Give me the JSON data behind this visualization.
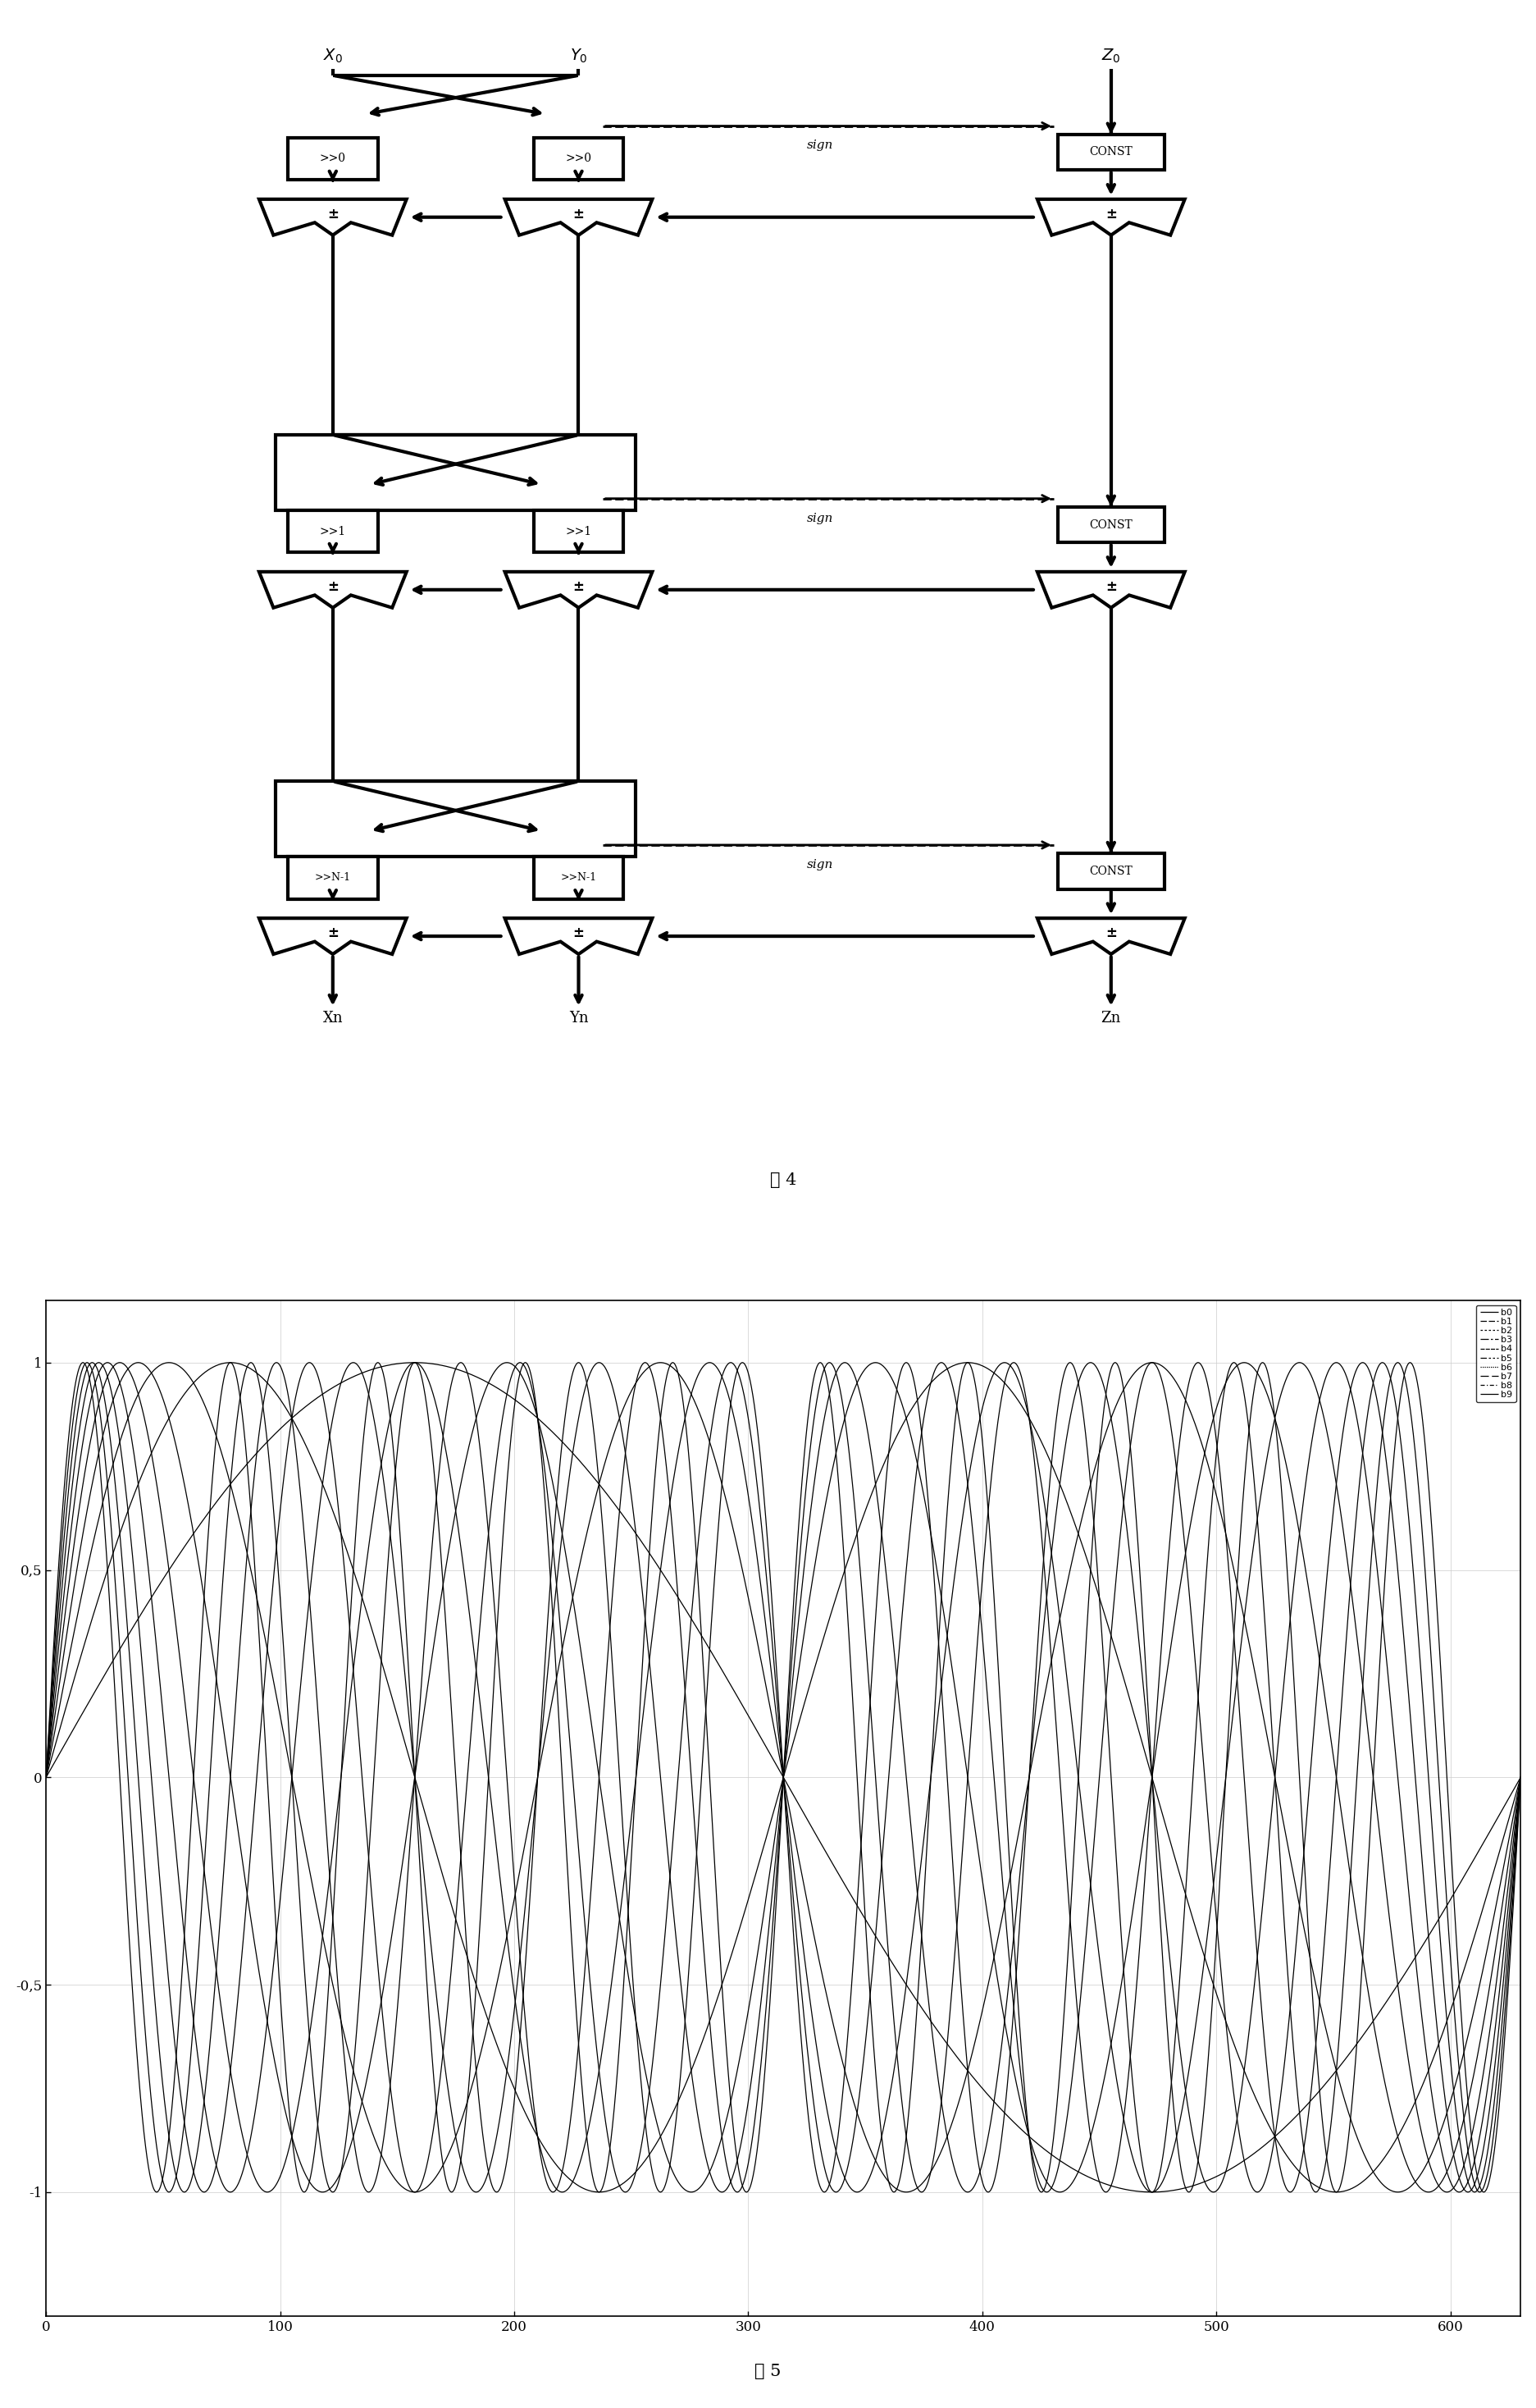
{
  "fig4_caption": "图 4",
  "fig5_caption": "图 5",
  "plot_xlim": [
    0,
    630
  ],
  "plot_ylim": [
    -1.3,
    1.15
  ],
  "plot_xticks": [
    0,
    100,
    200,
    300,
    400,
    500,
    600
  ],
  "plot_yticks": [
    -1,
    -0.5,
    0,
    0.5,
    1
  ],
  "plot_yticklabels": [
    "-1",
    "-0,5",
    "0",
    "0,5",
    "1"
  ],
  "n_samples": 630,
  "legend_labels": [
    "b0",
    "b1",
    "b2",
    "b3",
    "b4",
    "b5",
    "b6",
    "b7",
    "b8",
    "b9"
  ],
  "freqs": [
    1,
    2,
    3,
    4,
    5,
    6,
    7,
    8,
    9,
    10
  ]
}
